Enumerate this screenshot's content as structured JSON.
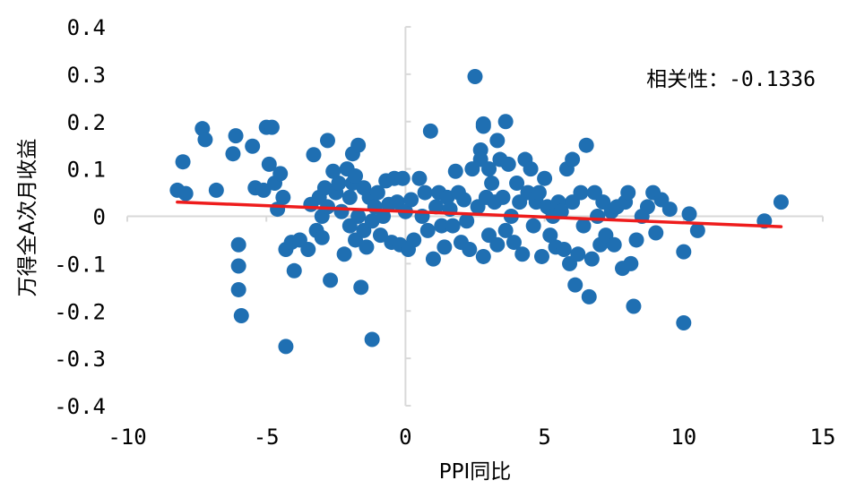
{
  "chart_data": {
    "type": "scatter",
    "title": "",
    "xlabel": "PPI同比",
    "ylabel": "万得全A次月收益",
    "annotation": "相关性：-0.1336",
    "xlim": [
      -10,
      15
    ],
    "ylim": [
      -0.4,
      0.4
    ],
    "xticks": [
      -10,
      -5,
      0,
      5,
      10,
      15
    ],
    "yticks": [
      0.4,
      0.3,
      0.2,
      0.1,
      0,
      -0.1,
      -0.2,
      -0.3,
      -0.4
    ],
    "xtick_labels": [
      "-10",
      "-5",
      "0",
      "5",
      "10",
      "15"
    ],
    "ytick_labels": [
      "0.4",
      "0.3",
      "0.2",
      "0.1",
      "0",
      "-0.1",
      "-0.2",
      "-0.3",
      "-0.4"
    ],
    "grid": false,
    "colors": {
      "points": "#1f6fb2",
      "trendline": "#ee1c1c",
      "axis": "#d9d9d9"
    },
    "trendline": {
      "x": [
        -8.2,
        13.5
      ],
      "y": [
        0.03,
        -0.022
      ]
    },
    "series": [
      {
        "points": [
          [
            -8.2,
            0.055
          ],
          [
            -8.0,
            0.115
          ],
          [
            -7.9,
            0.048
          ],
          [
            -7.3,
            0.185
          ],
          [
            -7.2,
            0.162
          ],
          [
            -6.8,
            0.055
          ],
          [
            -6.2,
            0.132
          ],
          [
            -6.1,
            0.17
          ],
          [
            -6.0,
            -0.06
          ],
          [
            -6.0,
            -0.105
          ],
          [
            -6.0,
            -0.155
          ],
          [
            -5.9,
            -0.21
          ],
          [
            -5.5,
            0.148
          ],
          [
            -5.4,
            0.06
          ],
          [
            -5.1,
            0.055
          ],
          [
            -5.0,
            0.188
          ],
          [
            -4.9,
            0.11
          ],
          [
            -4.8,
            0.188
          ],
          [
            -4.7,
            0.07
          ],
          [
            -4.6,
            0.015
          ],
          [
            -4.5,
            0.09
          ],
          [
            -4.4,
            0.04
          ],
          [
            -4.3,
            -0.275
          ],
          [
            -4.3,
            -0.07
          ],
          [
            -4.1,
            -0.055
          ],
          [
            -4.0,
            -0.115
          ],
          [
            -3.8,
            -0.05
          ],
          [
            -3.5,
            -0.07
          ],
          [
            -3.4,
            0.025
          ],
          [
            -3.3,
            0.13
          ],
          [
            -3.2,
            -0.03
          ],
          [
            -3.1,
            0.04
          ],
          [
            -3.0,
            0.0
          ],
          [
            -3.0,
            -0.045
          ],
          [
            -2.9,
            0.06
          ],
          [
            -2.8,
            0.16
          ],
          [
            -2.8,
            0.02
          ],
          [
            -2.7,
            -0.135
          ],
          [
            -2.6,
            0.095
          ],
          [
            -2.5,
            0.05
          ],
          [
            -2.4,
            0.07
          ],
          [
            -2.3,
            0.01
          ],
          [
            -2.2,
            -0.08
          ],
          [
            -2.1,
            0.1
          ],
          [
            -2.0,
            0.04
          ],
          [
            -2.0,
            -0.02
          ],
          [
            -1.9,
            0.132
          ],
          [
            -1.9,
            0.07
          ],
          [
            -1.8,
            0.085
          ],
          [
            -1.8,
            -0.05
          ],
          [
            -1.7,
            0.15
          ],
          [
            -1.7,
            0.0
          ],
          [
            -1.6,
            -0.15
          ],
          [
            -1.5,
            0.06
          ],
          [
            -1.5,
            -0.03
          ],
          [
            -1.4,
            -0.065
          ],
          [
            -1.3,
            0.04
          ],
          [
            -1.2,
            -0.01
          ],
          [
            -1.2,
            -0.26
          ],
          [
            -1.1,
            0.02
          ],
          [
            -1.0,
            0.05
          ],
          [
            -0.9,
            -0.04
          ],
          [
            -0.8,
            0.0
          ],
          [
            -0.7,
            0.075
          ],
          [
            -0.6,
            0.025
          ],
          [
            -0.5,
            -0.055
          ],
          [
            -0.4,
            0.08
          ],
          [
            -0.3,
            0.03
          ],
          [
            -0.2,
            -0.06
          ],
          [
            -0.1,
            0.08
          ],
          [
            0.0,
            0.01
          ],
          [
            0.1,
            -0.07
          ],
          [
            0.2,
            0.035
          ],
          [
            0.3,
            -0.05
          ],
          [
            0.5,
            0.08
          ],
          [
            0.6,
            0.0
          ],
          [
            0.7,
            0.05
          ],
          [
            0.8,
            -0.03
          ],
          [
            0.9,
            0.18
          ],
          [
            1.0,
            -0.09
          ],
          [
            1.1,
            0.02
          ],
          [
            1.2,
            0.05
          ],
          [
            1.3,
            -0.02
          ],
          [
            1.4,
            -0.065
          ],
          [
            1.5,
            0.04
          ],
          [
            1.6,
            0.015
          ],
          [
            1.7,
            -0.02
          ],
          [
            1.8,
            0.095
          ],
          [
            1.9,
            0.05
          ],
          [
            2.0,
            -0.055
          ],
          [
            2.1,
            0.035
          ],
          [
            2.2,
            -0.01
          ],
          [
            2.3,
            -0.07
          ],
          [
            2.4,
            0.1
          ],
          [
            2.5,
            0.295
          ],
          [
            2.6,
            0.02
          ],
          [
            2.7,
            0.14
          ],
          [
            2.7,
            0.12
          ],
          [
            2.8,
            0.195
          ],
          [
            2.8,
            0.19
          ],
          [
            2.8,
            -0.085
          ],
          [
            2.9,
            0.04
          ],
          [
            3.0,
            0.1
          ],
          [
            3.0,
            -0.04
          ],
          [
            3.1,
            0.07
          ],
          [
            3.2,
            0.03
          ],
          [
            3.3,
            0.16
          ],
          [
            3.3,
            -0.06
          ],
          [
            3.4,
            0.12
          ],
          [
            3.5,
            0.04
          ],
          [
            3.6,
            0.2
          ],
          [
            3.6,
            -0.03
          ],
          [
            3.7,
            0.11
          ],
          [
            3.8,
            0.0
          ],
          [
            3.9,
            -0.055
          ],
          [
            4.0,
            0.07
          ],
          [
            4.1,
            0.03
          ],
          [
            4.2,
            -0.08
          ],
          [
            4.3,
            0.12
          ],
          [
            4.4,
            0.05
          ],
          [
            4.5,
            0.1
          ],
          [
            4.6,
            -0.02
          ],
          [
            4.7,
            0.03
          ],
          [
            4.8,
            0.05
          ],
          [
            4.9,
            -0.085
          ],
          [
            5.0,
            0.08
          ],
          [
            5.1,
            0.02
          ],
          [
            5.2,
            -0.04
          ],
          [
            5.3,
            0.0
          ],
          [
            5.4,
            -0.065
          ],
          [
            5.5,
            0.03
          ],
          [
            5.6,
            0.01
          ],
          [
            5.7,
            -0.07
          ],
          [
            5.8,
            0.1
          ],
          [
            5.9,
            -0.1
          ],
          [
            6.0,
            0.12
          ],
          [
            6.0,
            0.03
          ],
          [
            6.1,
            -0.145
          ],
          [
            6.2,
            -0.08
          ],
          [
            6.3,
            0.05
          ],
          [
            6.4,
            -0.02
          ],
          [
            6.5,
            0.15
          ],
          [
            6.6,
            -0.17
          ],
          [
            6.7,
            -0.09
          ],
          [
            6.8,
            0.05
          ],
          [
            6.9,
            0.0
          ],
          [
            7.0,
            -0.06
          ],
          [
            7.1,
            0.03
          ],
          [
            7.2,
            -0.04
          ],
          [
            7.4,
            0.01
          ],
          [
            7.5,
            -0.06
          ],
          [
            7.6,
            0.02
          ],
          [
            7.8,
            -0.11
          ],
          [
            7.9,
            0.03
          ],
          [
            8.0,
            0.05
          ],
          [
            8.1,
            -0.1
          ],
          [
            8.2,
            -0.19
          ],
          [
            8.3,
            -0.05
          ],
          [
            8.5,
            0.0
          ],
          [
            8.7,
            0.02
          ],
          [
            8.9,
            0.05
          ],
          [
            9.0,
            -0.035
          ],
          [
            9.2,
            0.035
          ],
          [
            9.5,
            0.015
          ],
          [
            10.0,
            -0.225
          ],
          [
            10.0,
            -0.075
          ],
          [
            10.2,
            0.005
          ],
          [
            10.5,
            -0.03
          ],
          [
            12.9,
            -0.01
          ],
          [
            13.5,
            0.03
          ]
        ]
      }
    ]
  }
}
